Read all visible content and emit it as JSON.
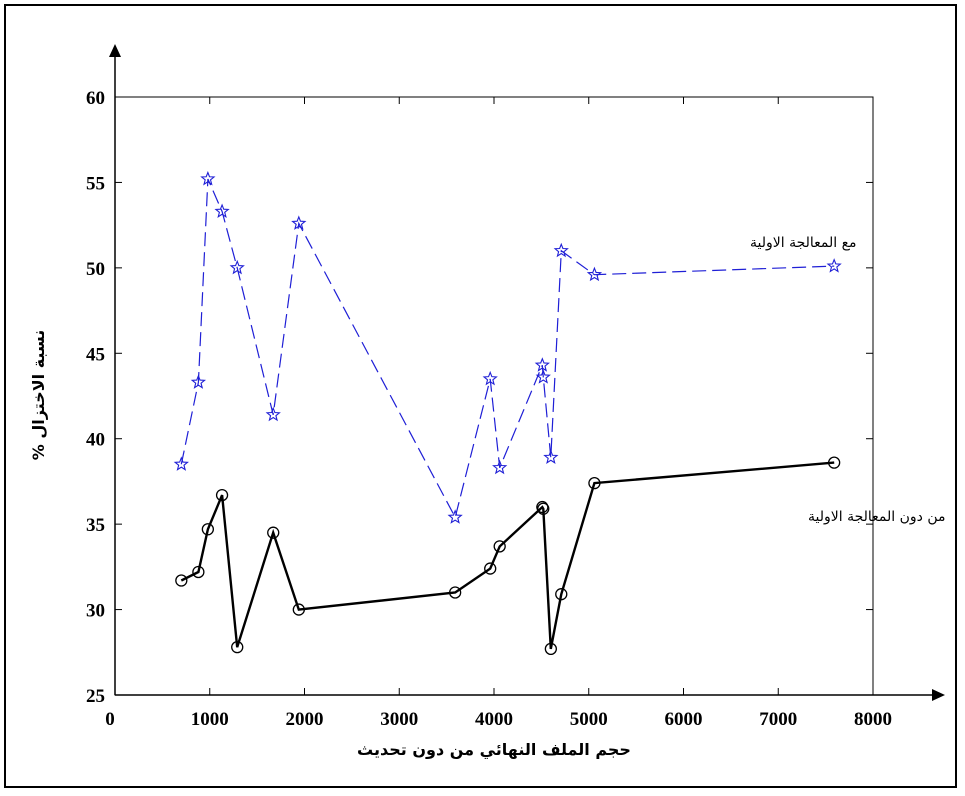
{
  "chart_data": {
    "type": "line",
    "xlabel": "حجم الملف النهائي من دون تحديث",
    "ylabel": "نسبة الاختزال %",
    "xlim": [
      0,
      8000
    ],
    "ylim": [
      25,
      60
    ],
    "xticks": [
      "0",
      "1000",
      "2000",
      "3000",
      "4000",
      "5000",
      "6000",
      "7000",
      "8000"
    ],
    "yticks": [
      "25",
      "30",
      "35",
      "40",
      "45",
      "50",
      "55",
      "60"
    ],
    "grid": false,
    "series": [
      {
        "name": "مع المعالجة الاولية",
        "color": "#1f1fd6",
        "line_style": "dashed",
        "marker": "star",
        "points": [
          [
            700,
            38.5
          ],
          [
            880,
            43.3
          ],
          [
            980,
            55.2
          ],
          [
            1130,
            53.3
          ],
          [
            1290,
            50.0
          ],
          [
            1670,
            41.4
          ],
          [
            1940,
            52.6
          ],
          [
            3590,
            35.4
          ],
          [
            3960,
            43.5
          ],
          [
            4060,
            38.3
          ],
          [
            4510,
            44.3
          ],
          [
            4520,
            43.6
          ],
          [
            4600,
            38.9
          ],
          [
            4710,
            51.0
          ],
          [
            5060,
            49.6
          ],
          [
            7590,
            50.1
          ]
        ]
      },
      {
        "name": "من دون المعالجة الاولية",
        "color": "#000000",
        "line_style": "solid",
        "marker": "circle",
        "points": [
          [
            700,
            31.7
          ],
          [
            880,
            32.2
          ],
          [
            980,
            34.7
          ],
          [
            1130,
            36.7
          ],
          [
            1290,
            27.8
          ],
          [
            1670,
            34.5
          ],
          [
            1940,
            30.0
          ],
          [
            3590,
            31.0
          ],
          [
            3960,
            32.4
          ],
          [
            4060,
            33.7
          ],
          [
            4510,
            36.0
          ],
          [
            4520,
            35.9
          ],
          [
            4600,
            27.7
          ],
          [
            4710,
            30.9
          ],
          [
            5060,
            37.4
          ],
          [
            7590,
            38.6
          ]
        ]
      }
    ]
  }
}
